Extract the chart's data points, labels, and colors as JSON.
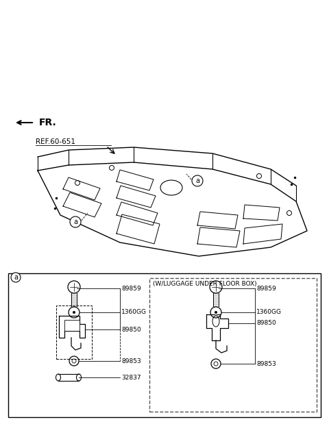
{
  "bg_color": "#ffffff",
  "line_color": "#000000",
  "gray_color": "#888888",
  "dashed_color": "#555555",
  "ref_label": "REF.60-651",
  "fr_label": "FR.",
  "circle_label_a": "a",
  "dashed_box_label": "(W/LUGGAGE UNDER FLOOR BOX)",
  "left_labels": [
    "89859",
    "1360GG",
    "89850",
    "89853",
    "32837"
  ],
  "right_labels": [
    "89859",
    "1360GG",
    "89850",
    "89853"
  ]
}
